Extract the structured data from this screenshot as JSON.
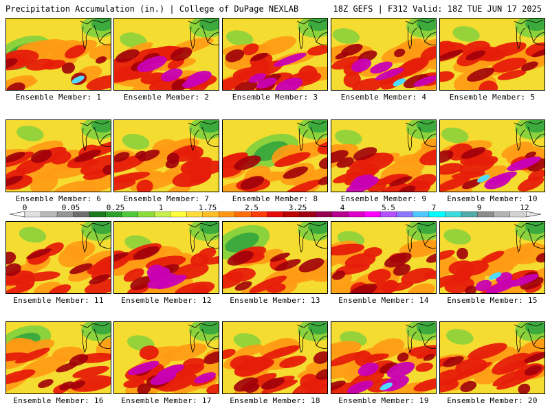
{
  "header": {
    "title_left": "Precipitation Accumulation (in.) | College of DuPage NEXLAB",
    "title_right": "18Z GEFS | F312 Valid: 18Z TUE JUN 17 2025"
  },
  "members": [
    {
      "label": "Ensemble Member: 1",
      "scheme": "green-sw-cyan"
    },
    {
      "label": "Ensemble Member: 2",
      "scheme": "red-magenta"
    },
    {
      "label": "Ensemble Member: 3",
      "scheme": "red-magenta"
    },
    {
      "label": "Ensemble Member: 4",
      "scheme": "red-magenta-cyan"
    },
    {
      "label": "Ensemble Member: 5",
      "scheme": "red"
    },
    {
      "label": "Ensemble Member: 6",
      "scheme": "yellow-red"
    },
    {
      "label": "Ensemble Member: 7",
      "scheme": "yellow-red"
    },
    {
      "label": "Ensemble Member: 8",
      "scheme": "green-center"
    },
    {
      "label": "Ensemble Member: 9",
      "scheme": "red-magenta"
    },
    {
      "label": "Ensemble Member: 10",
      "scheme": "red-magenta-cyan"
    },
    {
      "label": "Ensemble Member: 11",
      "scheme": "red"
    },
    {
      "label": "Ensemble Member: 12",
      "scheme": "red-magenta"
    },
    {
      "label": "Ensemble Member: 13",
      "scheme": "green-nw"
    },
    {
      "label": "Ensemble Member: 14",
      "scheme": "red"
    },
    {
      "label": "Ensemble Member: 15",
      "scheme": "red-magenta-cyan"
    },
    {
      "label": "Ensemble Member: 16",
      "scheme": "green-west"
    },
    {
      "label": "Ensemble Member: 17",
      "scheme": "red-magenta"
    },
    {
      "label": "Ensemble Member: 18",
      "scheme": "yellow-red"
    },
    {
      "label": "Ensemble Member: 19",
      "scheme": "red-magenta-cyan"
    },
    {
      "label": "Ensemble Member: 20",
      "scheme": "yellow-red"
    }
  ],
  "legend": {
    "tick_labels": [
      "0",
      "0.05",
      "0.25",
      "1",
      "1.75",
      "2.5",
      "3.25",
      "4",
      "5.5",
      "7",
      "9",
      "12"
    ],
    "colors": [
      "#e0e0e0",
      "#b8b8b8",
      "#969696",
      "#6e6e6e",
      "#197a1e",
      "#2ea02e",
      "#50c83c",
      "#8cdc3c",
      "#c8f050",
      "#ffff3c",
      "#ffdc3c",
      "#ffbe28",
      "#ff9614",
      "#ff6e0a",
      "#ff3c0a",
      "#e60a0a",
      "#be0000",
      "#a00014",
      "#960050",
      "#b4008c",
      "#dc00c8",
      "#ff00ff",
      "#b450ff",
      "#8c78ff",
      "#50c8ff",
      "#00ffff",
      "#3cdcdc",
      "#50aaaa",
      "#8c8c8c",
      "#b4b4b4",
      "#d2d2d2"
    ]
  },
  "palette": {
    "green": "#3caa3c",
    "light_green": "#8cd23c",
    "yellow": "#f5dc30",
    "orange": "#ff9a14",
    "red": "#e61e0a",
    "dark_red": "#a0000a",
    "magenta": "#c800b4",
    "cyan": "#50dcff"
  }
}
